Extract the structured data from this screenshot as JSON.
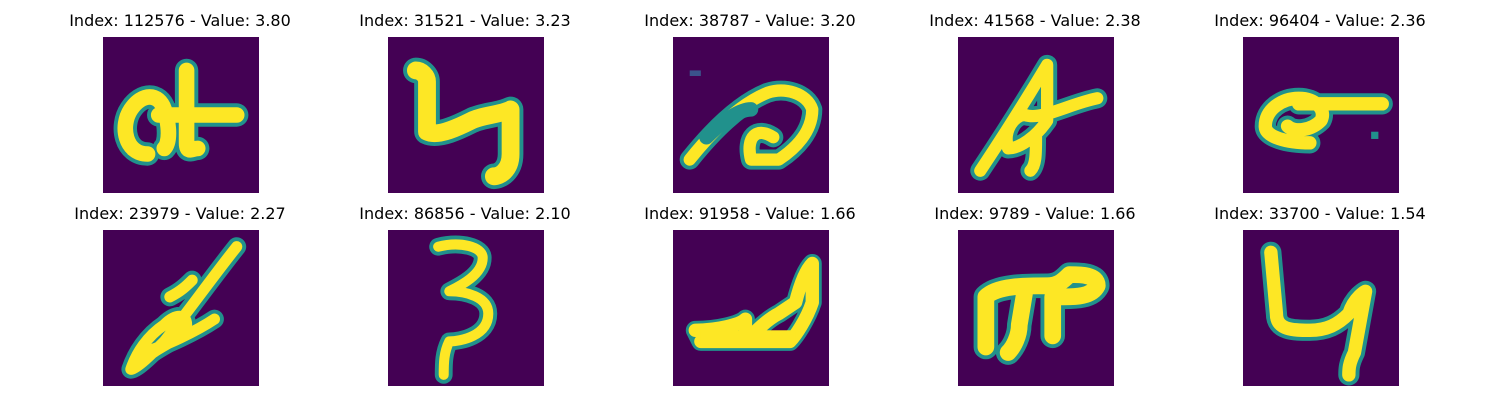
{
  "colors": {
    "background": "#440154",
    "stroke_core": "#fde725",
    "stroke_edge": "#21918c",
    "stroke_mid": "#5ec962"
  },
  "panels": [
    {
      "title": "Index: 112576 - Value: 3.80",
      "index": 112576,
      "value": 3.8
    },
    {
      "title": "Index: 31521 - Value: 3.23",
      "index": 31521,
      "value": 3.23
    },
    {
      "title": "Index: 38787 - Value: 3.20",
      "index": 38787,
      "value": 3.2
    },
    {
      "title": "Index: 41568 - Value: 2.38",
      "index": 41568,
      "value": 2.38
    },
    {
      "title": "Index: 96404 - Value: 2.36",
      "index": 96404,
      "value": 2.36
    },
    {
      "title": "Index: 23979 - Value: 2.27",
      "index": 23979,
      "value": 2.27
    },
    {
      "title": "Index: 86856 - Value: 2.10",
      "index": 86856,
      "value": 2.1
    },
    {
      "title": "Index: 91958 - Value: 1.66",
      "index": 91958,
      "value": 1.66
    },
    {
      "title": "Index: 9789 - Value: 1.66",
      "index": 9789,
      "value": 1.66
    },
    {
      "title": "Index: 33700 - Value: 1.54",
      "index": 33700,
      "value": 1.54
    }
  ]
}
